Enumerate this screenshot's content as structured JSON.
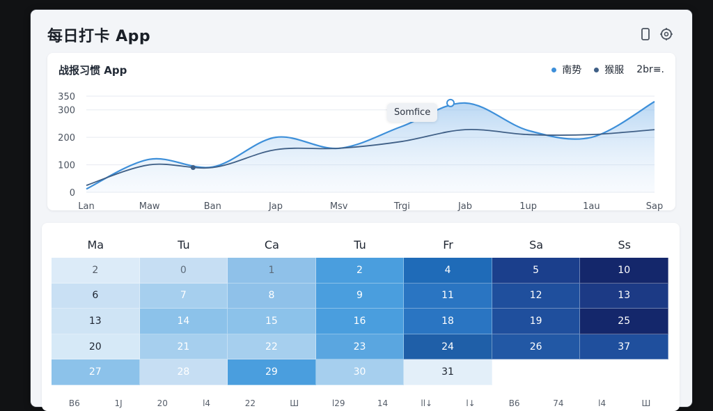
{
  "app": {
    "title": "每日打卡 App"
  },
  "toolbar": {
    "icons": [
      "phone-icon",
      "settings-icon"
    ]
  },
  "chart_panel": {
    "title": "战报习惯 App",
    "tooltip": "Somfice",
    "legend": [
      {
        "label": "南势",
        "color": "#3d8fd9"
      },
      {
        "label": "猴服",
        "color": "#3f5f86"
      }
    ],
    "legend_extra": "2br≡."
  },
  "chart_data": {
    "type": "area",
    "categories": [
      "Lan",
      "Maw",
      "Ban",
      "Jap",
      "Msv",
      "Trgi",
      "Jab",
      "1up",
      "1au",
      "Sap"
    ],
    "ylim": [
      0,
      350
    ],
    "yticks": [
      0,
      100,
      200,
      300,
      350
    ],
    "grid": true,
    "series": [
      {
        "name": "南势",
        "color": "#3d8fd9",
        "values": [
          12,
          120,
          92,
          200,
          160,
          240,
          325,
          225,
          200,
          330
        ]
      },
      {
        "name": "猴服",
        "color": "#3f5f86",
        "values": [
          25,
          100,
          90,
          155,
          160,
          185,
          228,
          210,
          210,
          228
        ]
      }
    ]
  },
  "calendar": {
    "weekdays": [
      "Ma",
      "Tu",
      "Ca",
      "Tu",
      "Fr",
      "Sa",
      "Ss"
    ],
    "rows": [
      [
        {
          "v": "2",
          "c": "#dcebf8",
          "t": "#555d69"
        },
        {
          "v": "0",
          "c": "#c6def3",
          "t": "#5c6b7a"
        },
        {
          "v": "1",
          "c": "#8fc1e9",
          "t": "#5c6b7a"
        },
        {
          "v": "2",
          "c": "#4a9ede",
          "t": "#ffffff"
        },
        {
          "v": "4",
          "c": "#1f6bb8",
          "t": "#ffffff"
        },
        {
          "v": "5",
          "c": "#1b3f8c",
          "t": "#ffffff"
        },
        {
          "v": "10",
          "c": "#14276b",
          "t": "#ffffff"
        }
      ],
      [
        {
          "v": "6",
          "c": "#c9e0f4",
          "t": "#1d2430"
        },
        {
          "v": "7",
          "c": "#a6cfee",
          "t": "#ffffff"
        },
        {
          "v": "8",
          "c": "#8fc1e9",
          "t": "#ffffff"
        },
        {
          "v": "9",
          "c": "#4a9ede",
          "t": "#ffffff"
        },
        {
          "v": "11",
          "c": "#2a75c2",
          "t": "#ffffff"
        },
        {
          "v": "12",
          "c": "#1f4f9d",
          "t": "#ffffff"
        },
        {
          "v": "13",
          "c": "#1c3a85",
          "t": "#ffffff"
        }
      ],
      [
        {
          "v": "13",
          "c": "#cfe4f5",
          "t": "#1d2430"
        },
        {
          "v": "14",
          "c": "#8cc2ea",
          "t": "#ffffff"
        },
        {
          "v": "15",
          "c": "#8cc2ea",
          "t": "#ffffff"
        },
        {
          "v": "16",
          "c": "#4a9ede",
          "t": "#ffffff"
        },
        {
          "v": "18",
          "c": "#2a75c2",
          "t": "#ffffff"
        },
        {
          "v": "19",
          "c": "#1f4f9d",
          "t": "#ffffff"
        },
        {
          "v": "25",
          "c": "#14276b",
          "t": "#ffffff"
        }
      ],
      [
        {
          "v": "20",
          "c": "#d6e9f7",
          "t": "#1d2430"
        },
        {
          "v": "21",
          "c": "#a6cfee",
          "t": "#ffffff"
        },
        {
          "v": "22",
          "c": "#a6cfee",
          "t": "#ffffff"
        },
        {
          "v": "23",
          "c": "#5aa6e0",
          "t": "#ffffff"
        },
        {
          "v": "24",
          "c": "#1f5fa8",
          "t": "#ffffff"
        },
        {
          "v": "26",
          "c": "#2258a5",
          "t": "#ffffff"
        },
        {
          "v": "37",
          "c": "#1f4f9d",
          "t": "#ffffff"
        }
      ],
      [
        {
          "v": "27",
          "c": "#8cc2ea",
          "t": "#ffffff"
        },
        {
          "v": "28",
          "c": "#c6def3",
          "t": "#ffffff"
        },
        {
          "v": "29",
          "c": "#4a9ede",
          "t": "#ffffff"
        },
        {
          "v": "30",
          "c": "#a6cfee",
          "t": "#ffffff"
        },
        {
          "v": "31",
          "c": "#e3eff9",
          "t": "#1d2430"
        },
        {
          "v": "",
          "c": "#ffffff",
          "t": "#1d2430"
        },
        {
          "v": "",
          "c": "#ffffff",
          "t": "#1d2430"
        }
      ]
    ],
    "footer": [
      [
        "B6",
        "1J"
      ],
      [
        "20",
        "l4"
      ],
      [
        "22",
        "Ш"
      ],
      [
        "l29",
        "14"
      ],
      [
        "ll↓",
        "l↓"
      ],
      [
        "B6",
        "74"
      ],
      [
        "l4",
        "Ш"
      ]
    ]
  }
}
